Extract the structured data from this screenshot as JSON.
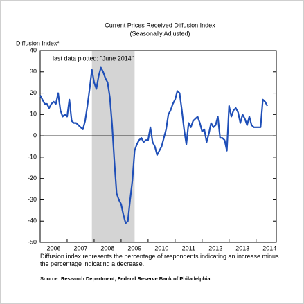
{
  "chart_data": {
    "type": "line",
    "title": "Current Prices Received Diffusion Index",
    "subtitle": "(Seasonally Adjusted)",
    "y_label": "Diffusion Index*",
    "annotation": "last data plotted: \"June 2014\"",
    "footnote": "Diffusion index represents the percentage of respondents indicating an increase minus the percentage indicating a decrease.",
    "source": "Source: Research Department, Federal Reserve Bank of Philadelphia",
    "color": "#1f4fb8",
    "shade_color": "#d4d4d4",
    "shaded_spans": [
      [
        2007.917,
        2009.5
      ]
    ],
    "xlim": [
      2006,
      2014.75
    ],
    "xticks": [
      2006,
      2007,
      2008,
      2009,
      2010,
      2011,
      2012,
      2013,
      2014
    ],
    "ylim": [
      -50,
      40
    ],
    "yticks": [
      40,
      30,
      20,
      10,
      0,
      -10,
      -20,
      -30,
      -40,
      -50
    ],
    "x": [
      2006,
      2006.083,
      2006.167,
      2006.25,
      2006.333,
      2006.417,
      2006.5,
      2006.583,
      2006.667,
      2006.75,
      2006.833,
      2006.917,
      2007,
      2007.083,
      2007.167,
      2007.25,
      2007.333,
      2007.417,
      2007.5,
      2007.583,
      2007.667,
      2007.75,
      2007.833,
      2007.917,
      2008,
      2008.083,
      2008.167,
      2008.25,
      2008.333,
      2008.417,
      2008.5,
      2008.583,
      2008.667,
      2008.75,
      2008.833,
      2008.917,
      2009,
      2009.083,
      2009.167,
      2009.25,
      2009.333,
      2009.417,
      2009.5,
      2009.583,
      2009.667,
      2009.75,
      2009.833,
      2009.917,
      2010,
      2010.083,
      2010.167,
      2010.25,
      2010.333,
      2010.417,
      2010.5,
      2010.583,
      2010.667,
      2010.75,
      2010.833,
      2010.917,
      2011,
      2011.083,
      2011.167,
      2011.25,
      2011.333,
      2011.417,
      2011.5,
      2011.583,
      2011.667,
      2011.75,
      2011.833,
      2011.917,
      2012,
      2012.083,
      2012.167,
      2012.25,
      2012.333,
      2012.417,
      2012.5,
      2012.583,
      2012.667,
      2012.75,
      2012.833,
      2012.917,
      2013,
      2013.083,
      2013.167,
      2013.25,
      2013.333,
      2013.417,
      2013.5,
      2013.583,
      2013.667,
      2013.75,
      2013.833,
      2013.917,
      2014,
      2014.083,
      2014.167,
      2014.25,
      2014.333,
      2014.417
    ],
    "values": [
      19,
      17,
      15,
      15,
      13,
      15,
      16,
      15,
      20,
      12,
      9,
      10,
      9,
      17,
      7,
      6,
      6,
      5,
      4,
      3,
      7,
      14,
      22,
      31,
      25,
      22,
      28,
      32,
      30,
      27,
      25,
      18,
      5,
      -12,
      -27,
      -30,
      -32,
      -37,
      -41,
      -40,
      -30,
      -21,
      -7,
      -4,
      -2,
      -1,
      -3,
      -2,
      -2,
      4,
      -3,
      -5,
      -9,
      -7,
      -5,
      -1,
      3,
      10,
      12,
      15,
      17,
      21,
      20,
      12,
      3,
      -4,
      6,
      4,
      7,
      8,
      9,
      6,
      2,
      3,
      -3,
      1,
      6,
      4,
      5,
      9,
      -1,
      -1,
      -2,
      -7,
      14,
      9,
      12,
      13,
      11,
      6,
      10,
      8,
      5,
      9,
      5,
      4,
      4,
      4,
      4,
      17,
      16,
      14
    ]
  }
}
